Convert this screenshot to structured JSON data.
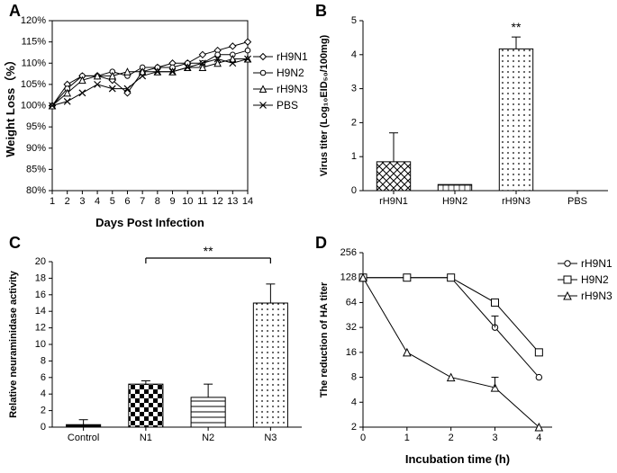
{
  "colors": {
    "bg": "#ffffff",
    "fg": "#000000",
    "grey": "#888888"
  },
  "panelA": {
    "label": "A",
    "type": "line",
    "x": {
      "title": "Days Post Infection",
      "ticks": [
        1,
        2,
        3,
        4,
        5,
        6,
        7,
        8,
        9,
        10,
        11,
        12,
        13,
        14
      ],
      "lim": [
        1,
        14
      ]
    },
    "y": {
      "title": "Weight Loss（%）",
      "ticks": [
        "80%",
        "85%",
        "90%",
        "95%",
        "100%",
        "105%",
        "110%",
        "115%",
        "120%"
      ],
      "lim": [
        80,
        120
      ]
    },
    "series": [
      {
        "name": "rH9N1",
        "marker": "diamond",
        "values": [
          100,
          105,
          107,
          107,
          106,
          103,
          108,
          109,
          110,
          110,
          112,
          113,
          114,
          115
        ]
      },
      {
        "name": "H9N2",
        "marker": "circle",
        "values": [
          100,
          104,
          107,
          107,
          108,
          107,
          109,
          109,
          109,
          110,
          110,
          112,
          112,
          113
        ]
      },
      {
        "name": "rH9N3",
        "marker": "triangle",
        "values": [
          100,
          103,
          106,
          107,
          107,
          108,
          108,
          108,
          108,
          109,
          109,
          110,
          111,
          111
        ]
      },
      {
        "name": "PBS",
        "marker": "x",
        "values": [
          100,
          101,
          103,
          105,
          104,
          104,
          107,
          108,
          108,
          109,
          110,
          111,
          110,
          111
        ]
      }
    ],
    "legend_order": [
      "rH9N1",
      "H9N2",
      "rH9N3",
      "PBS"
    ]
  },
  "panelB": {
    "label": "B",
    "type": "bar",
    "x_categories": [
      "rH9N1",
      "H9N2",
      "rH9N3",
      "PBS"
    ],
    "y": {
      "title": "Virus titer (Log₁₀EID₅₀/100mg)",
      "ticks": [
        0,
        1,
        2,
        3,
        4,
        5
      ],
      "lim": [
        0,
        5
      ]
    },
    "bars": [
      {
        "cat": "rH9N1",
        "value": 0.85,
        "err": 0.85,
        "pattern": "diamond"
      },
      {
        "cat": "H9N2",
        "value": 0.18,
        "err": 0,
        "pattern": "crosshatch"
      },
      {
        "cat": "rH9N3",
        "value": 4.17,
        "err": 0.35,
        "pattern": "dots",
        "sig": "**"
      },
      {
        "cat": "PBS",
        "value": 0,
        "err": 0,
        "pattern": "none"
      }
    ],
    "bar_width": 0.55
  },
  "panelC": {
    "label": "C",
    "type": "bar",
    "x_categories": [
      "Control",
      "N1",
      "N2",
      "N3"
    ],
    "y": {
      "title": "Relative neuraminidase activity",
      "ticks": [
        0,
        2,
        4,
        6,
        8,
        10,
        12,
        14,
        16,
        18,
        20
      ],
      "lim": [
        0,
        20
      ]
    },
    "bars": [
      {
        "cat": "Control",
        "value": 0.3,
        "err": 0.6,
        "pattern": "solid"
      },
      {
        "cat": "N1",
        "value": 5.2,
        "err": 0.4,
        "pattern": "checker"
      },
      {
        "cat": "N2",
        "value": 3.6,
        "err": 1.6,
        "pattern": "hstripes"
      },
      {
        "cat": "N3",
        "value": 15.0,
        "err": 2.3,
        "pattern": "dots"
      }
    ],
    "sig_bar": {
      "from": "N1",
      "to": "N3",
      "label": "**"
    },
    "bar_width": 0.55
  },
  "panelD": {
    "label": "D",
    "type": "line",
    "x": {
      "title": "Incubation time (h)",
      "ticks": [
        0,
        1,
        2,
        3,
        4
      ],
      "lim": [
        0,
        4.3
      ]
    },
    "y": {
      "title": "The reduction of HA titer",
      "ticks": [
        2,
        4,
        8,
        16,
        32,
        64,
        128,
        256
      ],
      "log2": true
    },
    "series": [
      {
        "name": "rH9N1",
        "marker": "circle",
        "values": [
          [
            0,
            128
          ],
          [
            1,
            128
          ],
          [
            2,
            128
          ],
          [
            3,
            32
          ],
          [
            4,
            8
          ]
        ],
        "err": [
          [
            3,
            12
          ]
        ]
      },
      {
        "name": "H9N2",
        "marker": "square",
        "values": [
          [
            0,
            128
          ],
          [
            1,
            128
          ],
          [
            2,
            128
          ],
          [
            3,
            64
          ],
          [
            4,
            16
          ]
        ]
      },
      {
        "name": "rH9N3",
        "marker": "triangle",
        "values": [
          [
            0,
            128
          ],
          [
            1,
            16
          ],
          [
            2,
            8
          ],
          [
            3,
            6
          ],
          [
            4,
            2
          ]
        ],
        "err": [
          [
            3,
            2
          ]
        ]
      }
    ],
    "legend_order": [
      "rH9N1",
      "H9N2",
      "rH9N3"
    ]
  },
  "labels": {
    "A": "A",
    "B": "B",
    "C": "C",
    "D": "D"
  }
}
